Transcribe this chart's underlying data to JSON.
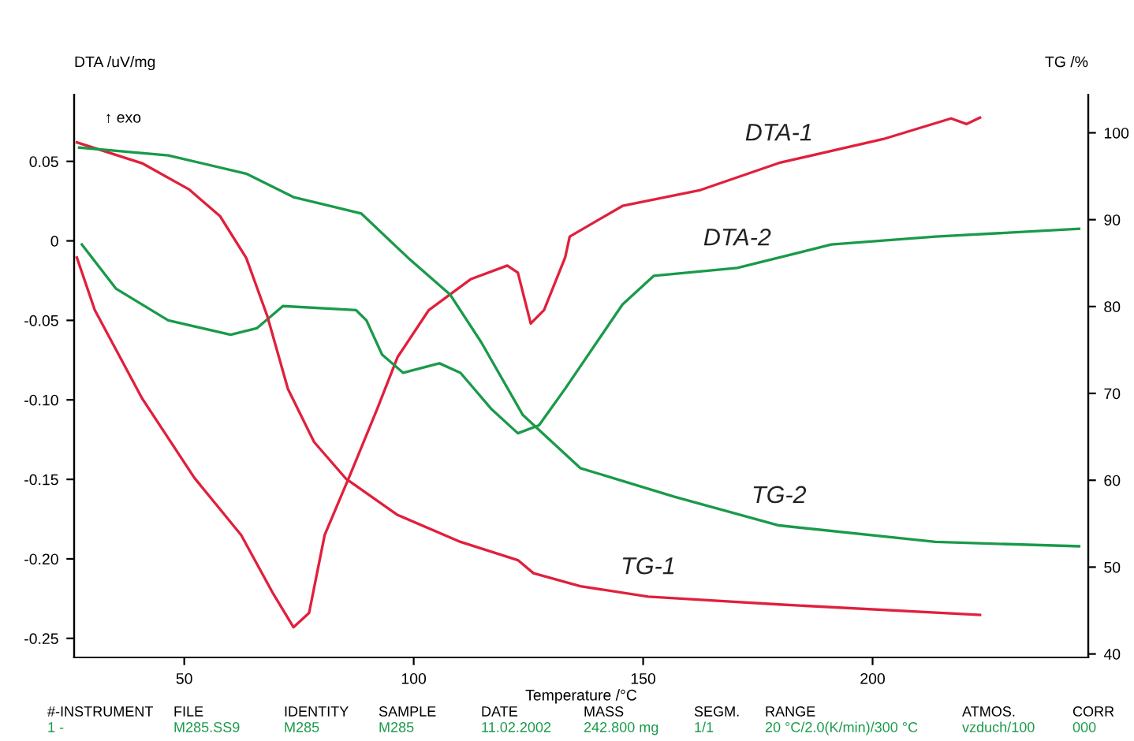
{
  "chart_data": {
    "type": "line",
    "xlabel": "Temperature /°C",
    "ylabel": "DTA /uV/mg",
    "y2label": "TG /%",
    "xlim": [
      26,
      247
    ],
    "xticks": [
      50,
      100,
      150,
      200
    ],
    "ylim": [
      -0.262,
      0.092
    ],
    "yticks": [
      0.05,
      0,
      -0.05,
      {
        "value": -0.1,
        "label": "-0.10"
      },
      {
        "value": -0.15,
        "label": "-0.15"
      },
      {
        "value": -0.2,
        "label": "-0.20"
      },
      {
        "value": -0.25,
        "label": "-0.25"
      }
    ],
    "y2lim": [
      39.6,
      104.4
    ],
    "y2ticks": [
      40,
      50,
      60,
      70,
      80,
      90,
      100
    ],
    "grid": false,
    "legend": false,
    "marker": "none",
    "line_style": "solid",
    "series": [
      {
        "name": "DTA-1",
        "color": "#e0203c",
        "x": [
          26.6,
          30.5,
          40.8,
          52.2,
          62.4,
          69.2,
          73.8,
          77.2,
          80.6,
          86.3,
          92,
          96.5,
          103.3,
          112.5,
          120.4,
          122.7,
          125.5,
          128.4,
          133,
          134,
          145.5,
          162.5,
          179.6,
          202.3,
          217.1,
          220.5,
          223.4
        ],
        "values": [
          -0.0105,
          -0.0435,
          -0.099,
          -0.149,
          -0.185,
          -0.221,
          -0.243,
          -0.234,
          -0.185,
          -0.146,
          -0.106,
          -0.073,
          -0.0435,
          -0.024,
          -0.0155,
          -0.02,
          -0.052,
          -0.0435,
          -0.0105,
          0.0027,
          0.022,
          0.032,
          0.049,
          0.064,
          0.077,
          0.0735,
          0.0775
        ]
      },
      {
        "name": "DTA-2",
        "color": "#1a9a4a",
        "x": [
          27.7,
          35.1,
          46.5,
          60.1,
          65.8,
          71.5,
          87.4,
          89.7,
          93.1,
          97.7,
          105.6,
          110.2,
          117,
          122.7,
          127.3,
          133,
          145.5,
          152.3,
          170.5,
          191,
          213.7,
          245
        ],
        "values": [
          -0.0023,
          -0.03,
          -0.05,
          -0.059,
          -0.055,
          -0.041,
          -0.0435,
          -0.05,
          -0.0715,
          -0.083,
          -0.077,
          -0.083,
          -0.106,
          -0.121,
          -0.116,
          -0.093,
          -0.04,
          -0.022,
          -0.017,
          -0.0023,
          0.0027,
          0.0076
        ]
      },
      {
        "name": "TG-1",
        "color": "#e0203c",
        "axis": "y2",
        "x": [
          26.6,
          40.8,
          51,
          57.8,
          63.5,
          68.1,
          72.6,
          78.3,
          85.2,
          96.5,
          110.2,
          122.7,
          126.1,
          136.3,
          151.1,
          179.6,
          223.4
        ],
        "values": [
          98.9,
          96.5,
          93.5,
          90.4,
          85.6,
          78.9,
          70.5,
          64.4,
          60.2,
          56.0,
          52.9,
          50.8,
          49.3,
          47.8,
          46.6,
          45.7,
          44.5
        ]
      },
      {
        "name": "TG-2",
        "color": "#1a9a4a",
        "axis": "y2",
        "x": [
          27.1,
          46.5,
          63.5,
          73.8,
          88.6,
          98.8,
          107.9,
          114.7,
          123.8,
          136.3,
          156.8,
          179.6,
          213.7,
          245
        ],
        "values": [
          98.3,
          97.4,
          95.3,
          92.6,
          90.7,
          85.6,
          81.4,
          75.9,
          67.5,
          61.4,
          58.1,
          54.8,
          52.9,
          52.4
        ]
      }
    ],
    "annotations": [
      "↑ exo",
      "#-INSTRUMENT",
      "FILE",
      "IDENTITY",
      "SAMPLE",
      "DATE",
      "MASS",
      "SEGM.",
      "RANGE",
      "ATMOS.",
      "CORR",
      "1 -",
      "M285.SS9",
      "M285",
      "M285",
      "11.02.2002",
      "242.800 mg",
      "1/1",
      "20 °C/2.0(K/min)/300 °C",
      "vzduch/100",
      "000"
    ]
  }
}
